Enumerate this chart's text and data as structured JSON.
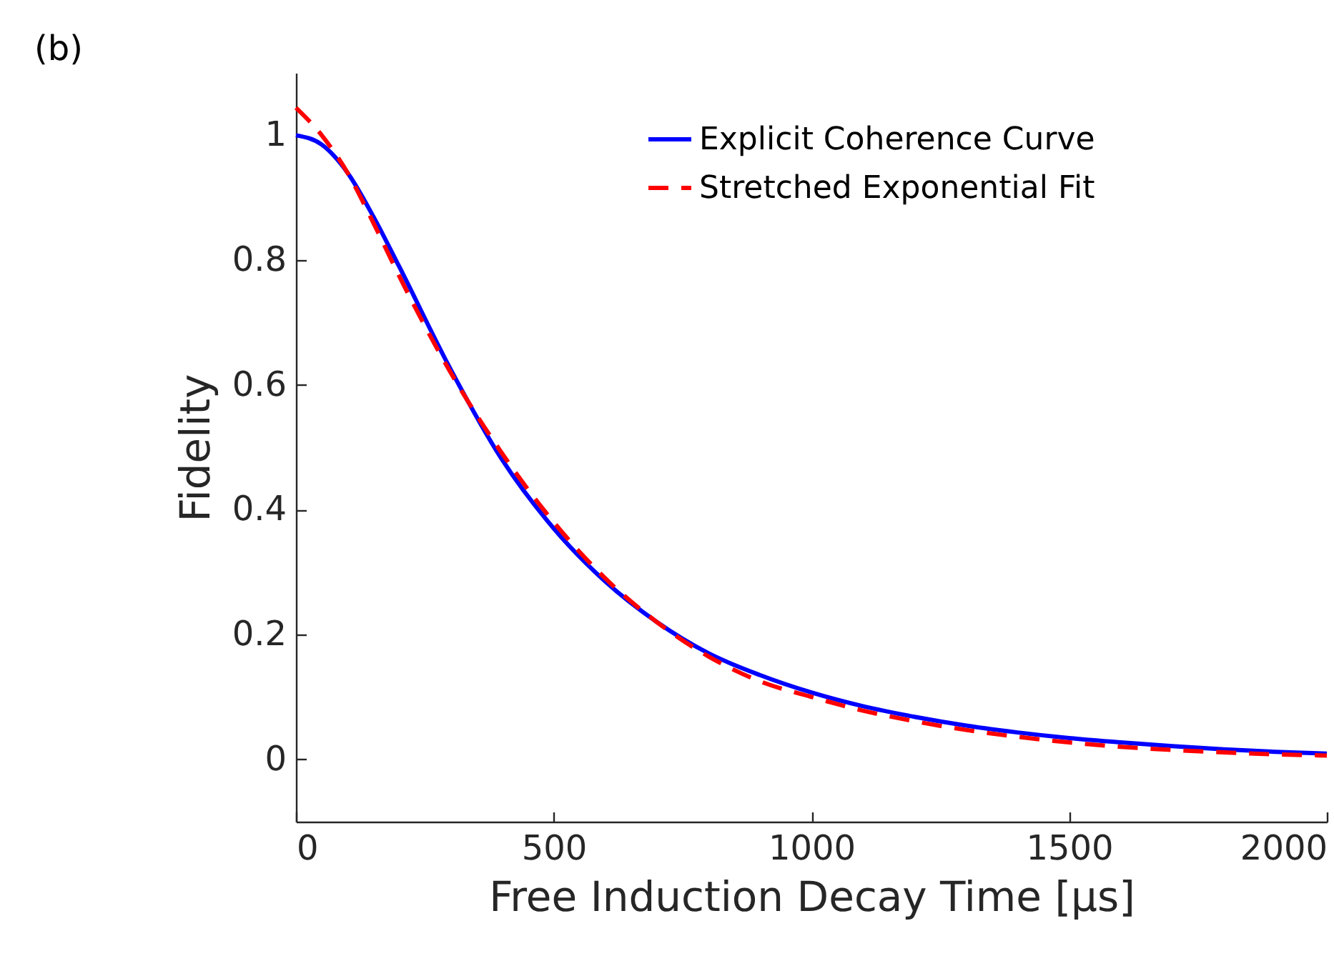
{
  "chart_data": {
    "type": "line",
    "xlabel": "Free Induction Decay Time [μs]",
    "ylabel": "Fidelity",
    "annotations": [
      "(b)"
    ],
    "xlim": [
      0,
      2000
    ],
    "xticks": [
      0,
      500,
      1000,
      1500,
      2000
    ],
    "ylim": [
      -0.1,
      1.1
    ],
    "yticks": [
      0,
      0.2,
      0.4,
      0.6,
      0.8,
      1
    ],
    "grid": false,
    "legend": "top right",
    "x": [
      0,
      50,
      100,
      150,
      200,
      300,
      400,
      500,
      600,
      700,
      800,
      900,
      1000,
      1100,
      1200,
      1300,
      1400,
      1500,
      1600,
      1700,
      1800,
      1900,
      2000
    ],
    "series": [
      {
        "name": "Explicit Coherence Curve",
        "color": "#0000ff",
        "line_style": "solid",
        "values": [
          1.0,
          0.985,
          0.94,
          0.87,
          0.79,
          0.625,
          0.48,
          0.37,
          0.285,
          0.22,
          0.17,
          0.135,
          0.107,
          0.085,
          0.068,
          0.054,
          0.043,
          0.034,
          0.027,
          0.021,
          0.016,
          0.012,
          0.009
        ]
      },
      {
        "name": "Stretched Exponential Fit",
        "color": "#ff0000",
        "line_style": "dashed",
        "values": [
          1.044,
          1.0,
          0.94,
          0.86,
          0.775,
          0.62,
          0.49,
          0.38,
          0.29,
          0.22,
          0.165,
          0.125,
          0.1,
          0.078,
          0.061,
          0.047,
          0.036,
          0.027,
          0.02,
          0.015,
          0.011,
          0.008,
          0.006
        ]
      }
    ]
  }
}
